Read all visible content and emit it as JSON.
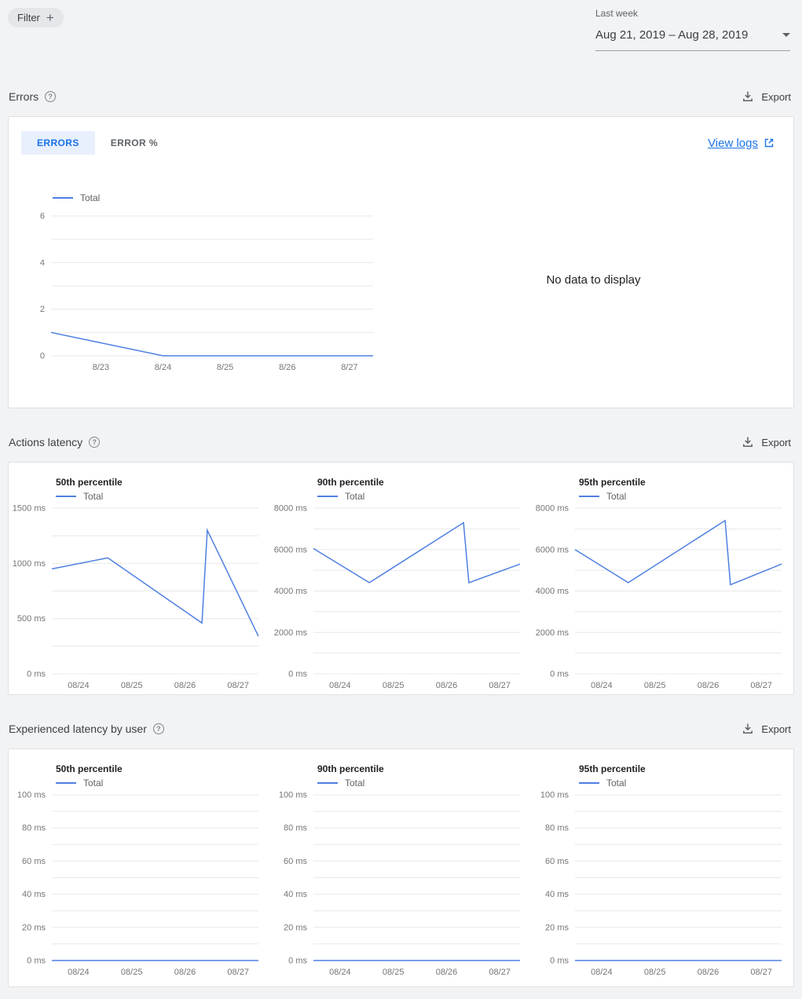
{
  "colors": {
    "background": "#f1f3f4",
    "card": "#ffffff",
    "accent_blue": "#1a73e8",
    "active_tab_bg": "#e8f0fe",
    "chart_line": "#4f80e2",
    "grid": "#e7e8ea",
    "tick_label": "#757575"
  },
  "toolbar": {
    "filter_label": "Filter",
    "range_label": "Last week",
    "range_value": "Aug 21, 2019 – Aug 28, 2019"
  },
  "sections": {
    "errors": {
      "title": "Errors",
      "export_label": "Export",
      "tabs": [
        {
          "label": "ERRORS",
          "active": true
        },
        {
          "label": "ERROR %",
          "active": false
        }
      ],
      "view_logs_label": "View logs",
      "no_data_text": "No data to display"
    },
    "actions_latency": {
      "title": "Actions latency",
      "export_label": "Export"
    },
    "experienced_latency": {
      "title": "Experienced latency by user",
      "export_label": "Export"
    }
  },
  "chart_data": [
    {
      "type": "line",
      "section": "Errors",
      "series": [
        {
          "name": "Total",
          "points": [
            [
              0.2,
              1
            ],
            [
              2,
              0
            ],
            [
              5.38,
              0
            ]
          ]
        }
      ],
      "xlim": [
        0.2,
        5.38
      ],
      "ylim": [
        0,
        6
      ],
      "yticks": [
        0,
        2,
        4,
        6
      ],
      "ygrid": [
        0,
        1,
        2,
        3,
        4,
        5,
        6
      ],
      "ytick_suffix": "",
      "xticks": [
        {
          "x": 1,
          "label": "8/23"
        },
        {
          "x": 2,
          "label": "8/24"
        },
        {
          "x": 3,
          "label": "8/25"
        },
        {
          "x": 4,
          "label": "8/26"
        },
        {
          "x": 5,
          "label": "8/27"
        }
      ]
    },
    {
      "type": "line",
      "section": "Actions latency",
      "title": "50th percentile",
      "series": [
        {
          "name": "Total",
          "points": [
            [
              0.5,
              950
            ],
            [
              1.55,
              1050
            ],
            [
              3.32,
              460
            ],
            [
              3.42,
              1300
            ],
            [
              4.38,
              340
            ]
          ]
        }
      ],
      "xlim": [
        0.5,
        4.38
      ],
      "ylim": [
        0,
        1500
      ],
      "yticks": [
        0,
        500,
        1000,
        1500
      ],
      "ygrid": [
        0,
        250,
        500,
        750,
        1000,
        1250,
        1500
      ],
      "ytick_suffix": " ms",
      "xticks": [
        {
          "x": 1,
          "label": "08/24"
        },
        {
          "x": 2,
          "label": "08/25"
        },
        {
          "x": 3,
          "label": "08/26"
        },
        {
          "x": 4,
          "label": "08/27"
        }
      ]
    },
    {
      "type": "line",
      "section": "Actions latency",
      "title": "90th percentile",
      "series": [
        {
          "name": "Total",
          "points": [
            [
              0.5,
              6050
            ],
            [
              1.55,
              4400
            ],
            [
              3.32,
              7300
            ],
            [
              3.42,
              4400
            ],
            [
              4.38,
              5300
            ]
          ]
        }
      ],
      "xlim": [
        0.5,
        4.38
      ],
      "ylim": [
        0,
        8000
      ],
      "yticks": [
        0,
        2000,
        4000,
        6000,
        8000
      ],
      "ygrid": [
        0,
        1000,
        2000,
        3000,
        4000,
        5000,
        6000,
        7000,
        8000
      ],
      "ytick_suffix": " ms",
      "xticks": [
        {
          "x": 1,
          "label": "08/24"
        },
        {
          "x": 2,
          "label": "08/25"
        },
        {
          "x": 3,
          "label": "08/26"
        },
        {
          "x": 4,
          "label": "08/27"
        }
      ]
    },
    {
      "type": "line",
      "section": "Actions latency",
      "title": "95th percentile",
      "series": [
        {
          "name": "Total",
          "points": [
            [
              0.5,
              6000
            ],
            [
              1.5,
              4400
            ],
            [
              3.32,
              7400
            ],
            [
              3.42,
              4300
            ],
            [
              4.38,
              5300
            ]
          ]
        }
      ],
      "xlim": [
        0.5,
        4.38
      ],
      "ylim": [
        0,
        8000
      ],
      "yticks": [
        0,
        2000,
        4000,
        6000,
        8000
      ],
      "ygrid": [
        0,
        1000,
        2000,
        3000,
        4000,
        5000,
        6000,
        7000,
        8000
      ],
      "ytick_suffix": " ms",
      "xticks": [
        {
          "x": 1,
          "label": "08/24"
        },
        {
          "x": 2,
          "label": "08/25"
        },
        {
          "x": 3,
          "label": "08/26"
        },
        {
          "x": 4,
          "label": "08/27"
        }
      ]
    },
    {
      "type": "line",
      "section": "Experienced latency by user",
      "title": "50th percentile",
      "series": [
        {
          "name": "Total",
          "points": [
            [
              0.5,
              0
            ],
            [
              4.38,
              0
            ]
          ]
        }
      ],
      "xlim": [
        0.5,
        4.38
      ],
      "ylim": [
        0,
        100
      ],
      "yticks": [
        0,
        20,
        40,
        60,
        80,
        100
      ],
      "ygrid": [
        0,
        10,
        20,
        30,
        40,
        50,
        60,
        70,
        80,
        90,
        100
      ],
      "ytick_suffix": " ms",
      "xticks": [
        {
          "x": 1,
          "label": "08/24"
        },
        {
          "x": 2,
          "label": "08/25"
        },
        {
          "x": 3,
          "label": "08/26"
        },
        {
          "x": 4,
          "label": "08/27"
        }
      ]
    },
    {
      "type": "line",
      "section": "Experienced latency by user",
      "title": "90th percentile",
      "series": [
        {
          "name": "Total",
          "points": [
            [
              0.5,
              0
            ],
            [
              4.38,
              0
            ]
          ]
        }
      ],
      "xlim": [
        0.5,
        4.38
      ],
      "ylim": [
        0,
        100
      ],
      "yticks": [
        0,
        20,
        40,
        60,
        80,
        100
      ],
      "ygrid": [
        0,
        10,
        20,
        30,
        40,
        50,
        60,
        70,
        80,
        90,
        100
      ],
      "ytick_suffix": " ms",
      "xticks": [
        {
          "x": 1,
          "label": "08/24"
        },
        {
          "x": 2,
          "label": "08/25"
        },
        {
          "x": 3,
          "label": "08/26"
        },
        {
          "x": 4,
          "label": "08/27"
        }
      ]
    },
    {
      "type": "line",
      "section": "Experienced latency by user",
      "title": "95th percentile",
      "series": [
        {
          "name": "Total",
          "points": [
            [
              0.5,
              0
            ],
            [
              4.38,
              0
            ]
          ]
        }
      ],
      "xlim": [
        0.5,
        4.38
      ],
      "ylim": [
        0,
        100
      ],
      "yticks": [
        0,
        20,
        40,
        60,
        80,
        100
      ],
      "ygrid": [
        0,
        10,
        20,
        30,
        40,
        50,
        60,
        70,
        80,
        90,
        100
      ],
      "ytick_suffix": " ms",
      "xticks": [
        {
          "x": 1,
          "label": "08/24"
        },
        {
          "x": 2,
          "label": "08/25"
        },
        {
          "x": 3,
          "label": "08/26"
        },
        {
          "x": 4,
          "label": "08/27"
        }
      ]
    }
  ]
}
